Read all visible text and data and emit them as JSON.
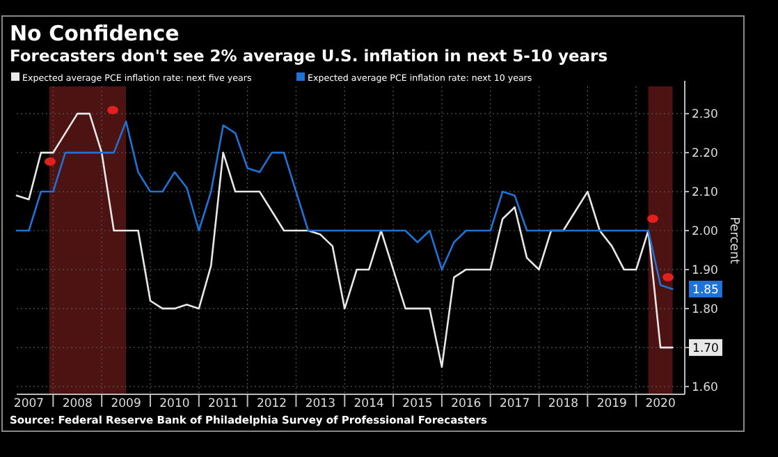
{
  "chart_data": {
    "type": "line",
    "title": "No Confidence",
    "subtitle": "Forecasters don't see 2% average U.S. inflation in next 5-10 years",
    "ylabel": "Percent",
    "annotations": [
      "Source: Federal Reserve Bank of Philadelphia Survey of Professional Forecasters"
    ],
    "x": [
      2007.25,
      2007.5,
      2007.75,
      2008,
      2008.25,
      2008.5,
      2008.75,
      2009,
      2009.25,
      2009.5,
      2009.75,
      2010,
      2010.25,
      2010.5,
      2010.75,
      2011,
      2011.25,
      2011.5,
      2011.75,
      2012,
      2012.25,
      2012.5,
      2012.75,
      2013,
      2013.25,
      2013.5,
      2013.75,
      2014,
      2014.25,
      2014.5,
      2014.75,
      2015,
      2015.25,
      2015.5,
      2015.75,
      2016,
      2016.25,
      2016.5,
      2016.75,
      2017,
      2017.25,
      2017.5,
      2017.75,
      2018,
      2018.25,
      2018.5,
      2018.75,
      2019,
      2019.25,
      2019.5,
      2019.75,
      2020,
      2020.25,
      2020.5,
      2020.75
    ],
    "series": [
      {
        "name": "Expected average PCE inflation rate: next five years",
        "color": "#e8e8e8",
        "values": [
          2.09,
          2.08,
          2.2,
          2.2,
          2.25,
          2.3,
          2.3,
          2.2,
          2.0,
          2.0,
          2.0,
          1.82,
          1.8,
          1.8,
          1.81,
          1.8,
          1.91,
          2.2,
          2.1,
          2.1,
          2.1,
          2.05,
          2.0,
          2.0,
          2.0,
          1.99,
          1.96,
          1.8,
          1.9,
          1.9,
          2.0,
          1.9,
          1.8,
          1.8,
          1.8,
          1.65,
          1.88,
          1.9,
          1.9,
          1.9,
          2.03,
          2.06,
          1.93,
          1.9,
          2.0,
          2.0,
          2.05,
          2.1,
          2.0,
          1.96,
          1.9,
          1.9,
          2.0,
          1.7,
          1.7
        ],
        "value_labels": [
          null,
          null,
          null,
          null,
          null,
          null,
          null,
          null,
          null,
          null,
          null,
          null,
          null,
          null,
          null,
          null,
          null,
          null,
          null,
          null,
          null,
          null,
          null,
          null,
          null,
          null,
          null,
          null,
          null,
          null,
          null,
          null,
          null,
          null,
          null,
          null,
          null,
          null,
          null,
          null,
          null,
          null,
          null,
          null,
          null,
          null,
          null,
          null,
          null,
          null,
          null,
          null,
          null,
          null,
          "1.70"
        ]
      },
      {
        "name": "Expected average PCE inflation rate: next 10 years",
        "color": "#1f72d6",
        "values": [
          2.0,
          2.0,
          2.1,
          2.1,
          2.2,
          2.2,
          2.2,
          2.2,
          2.2,
          2.28,
          2.15,
          2.1,
          2.1,
          2.15,
          2.11,
          2.0,
          2.1,
          2.27,
          2.25,
          2.16,
          2.15,
          2.2,
          2.2,
          2.1,
          2.0,
          2.0,
          2.0,
          2.0,
          2.0,
          2.0,
          2.0,
          2.0,
          2.0,
          1.97,
          2.0,
          1.9,
          1.97,
          2.0,
          2.0,
          2.0,
          2.1,
          2.09,
          2.0,
          2.0,
          2.0,
          2.0,
          2.0,
          2.0,
          2.0,
          2.0,
          2.0,
          2.0,
          2.0,
          1.86,
          1.85
        ],
        "value_labels": [
          null,
          null,
          null,
          null,
          null,
          null,
          null,
          null,
          null,
          null,
          null,
          null,
          null,
          null,
          null,
          null,
          null,
          null,
          null,
          null,
          null,
          null,
          null,
          null,
          null,
          null,
          null,
          null,
          null,
          null,
          null,
          null,
          null,
          null,
          null,
          null,
          null,
          null,
          null,
          null,
          null,
          null,
          null,
          null,
          null,
          null,
          null,
          null,
          null,
          null,
          null,
          null,
          null,
          null,
          "1.85"
        ]
      }
    ],
    "bands": [
      {
        "axis": "x",
        "from": 2007.92,
        "to": 2009.5,
        "color": "#5a1616"
      },
      {
        "axis": "x",
        "from": 2020.25,
        "to": 2020.75,
        "color": "#5a1616"
      }
    ],
    "xlim": [
      2007.25,
      2021.0
    ],
    "xticks": [
      {
        "value": 2007.5,
        "label": "2007"
      },
      {
        "value": 2008,
        "label": null
      },
      {
        "value": 2008.5,
        "label": "2008"
      },
      {
        "value": 2009,
        "label": null
      },
      {
        "value": 2009.5,
        "label": "2009"
      },
      {
        "value": 2010,
        "label": null
      },
      {
        "value": 2010.5,
        "label": "2010"
      },
      {
        "value": 2011,
        "label": null
      },
      {
        "value": 2011.5,
        "label": "2011"
      },
      {
        "value": 2012,
        "label": null
      },
      {
        "value": 2012.5,
        "label": "2012"
      },
      {
        "value": 2013,
        "label": null
      },
      {
        "value": 2013.5,
        "label": "2013"
      },
      {
        "value": 2014,
        "label": null
      },
      {
        "value": 2014.5,
        "label": "2014"
      },
      {
        "value": 2015,
        "label": null
      },
      {
        "value": 2015.5,
        "label": "2015"
      },
      {
        "value": 2016,
        "label": null
      },
      {
        "value": 2016.5,
        "label": "2016"
      },
      {
        "value": 2017,
        "label": null
      },
      {
        "value": 2017.5,
        "label": "2017"
      },
      {
        "value": 2018,
        "label": null
      },
      {
        "value": 2018.5,
        "label": "2018"
      },
      {
        "value": 2019,
        "label": null
      },
      {
        "value": 2019.5,
        "label": "2019"
      },
      {
        "value": 2020,
        "label": null
      },
      {
        "value": 2020.5,
        "label": "2020"
      }
    ],
    "ylim": [
      1.58,
      2.37
    ],
    "yticks": [
      {
        "value": 1.6,
        "label": "1.60"
      },
      {
        "value": 1.7,
        "label": "1.70"
      },
      {
        "value": 1.8,
        "label": "1.80"
      },
      {
        "value": 1.9,
        "label": "1.90"
      },
      {
        "value": 2.0,
        "label": "2.00"
      },
      {
        "value": 2.1,
        "label": "2.10"
      },
      {
        "value": 2.2,
        "label": "2.20"
      },
      {
        "value": 2.3,
        "label": "2.30"
      }
    ],
    "grid": true,
    "legend": "top left",
    "marker": "none",
    "line_style": "solid"
  }
}
